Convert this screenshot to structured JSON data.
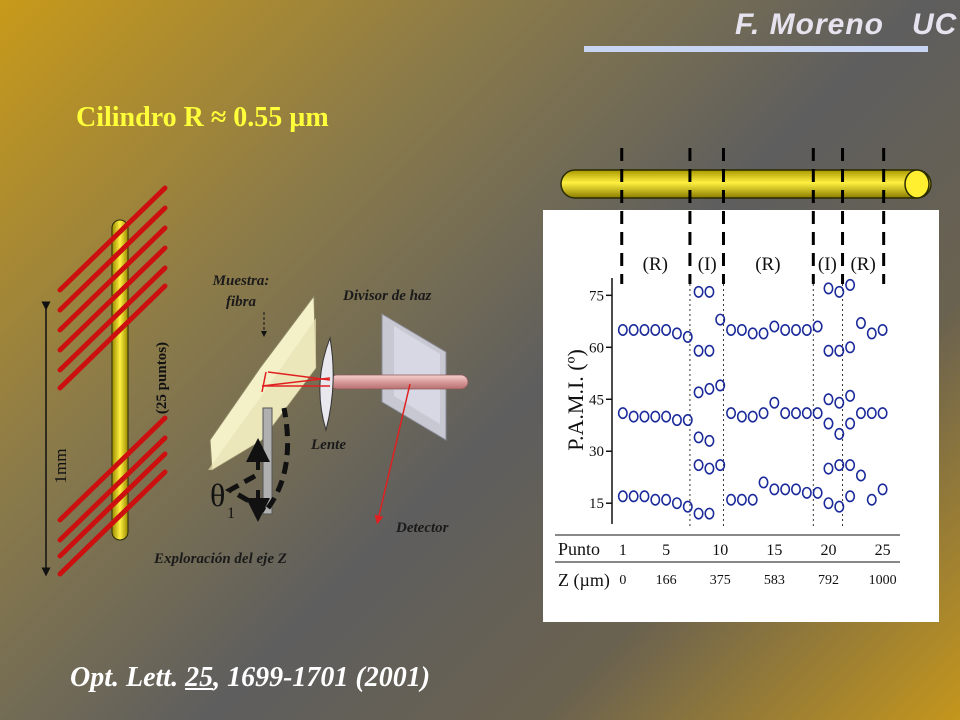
{
  "header": {
    "author": "F. Moreno",
    "institution": "UC"
  },
  "title": {
    "text": "Cilindro R ≈ 0.55 µm"
  },
  "citation": {
    "journal": "Opt. Lett.",
    "volume": "25",
    "rest": ", 1699-1701 (2001)"
  },
  "diagram": {
    "scale_label": "1mm",
    "points_label": "(25 puntos)",
    "muestra_line1": "Muestra:",
    "muestra_line2": "fibra",
    "divisor_label": "Divisor de haz",
    "lente_label": "Lente",
    "detector_label": "Detector",
    "exploration_label": "Exploración del eje Z",
    "theta_symbol": "θ",
    "theta_subscript": "1"
  },
  "colors": {
    "title": "#ffff3a",
    "fiber": "#f0e020",
    "laser": "#e01818",
    "marker": "#1a2a9a"
  },
  "chart_data": {
    "type": "scatter",
    "ylabel": "P.A.M.I. (º)",
    "yticks": [
      15,
      30,
      45,
      60,
      75
    ],
    "ylim": [
      9,
      80
    ],
    "xlim": [
      0,
      25.5
    ],
    "region_labels": [
      "(R)",
      "(I)",
      "(R)",
      "(I)",
      "(R)"
    ],
    "region_boundaries": [
      7.2,
      10.3,
      18.6,
      21.3
    ],
    "punto_label": "Punto",
    "punto_ticks": [
      1,
      5,
      10,
      15,
      20,
      25
    ],
    "z_label": "Z (µm)",
    "z_ticks": [
      "0",
      "166",
      "375",
      "583",
      "792",
      "1000"
    ],
    "series": [
      {
        "values": [
          [
            1,
            65
          ],
          [
            2,
            65
          ],
          [
            3,
            65
          ],
          [
            4,
            65
          ],
          [
            5,
            65
          ],
          [
            6,
            64
          ],
          [
            7,
            63
          ],
          [
            8,
            76
          ],
          [
            8,
            59
          ],
          [
            9,
            76
          ],
          [
            9,
            59
          ],
          [
            10,
            68
          ],
          [
            11,
            65
          ],
          [
            12,
            65
          ],
          [
            13,
            64
          ],
          [
            14,
            64
          ],
          [
            15,
            66
          ],
          [
            16,
            65
          ],
          [
            17,
            65
          ],
          [
            18,
            65
          ],
          [
            19,
            66
          ],
          [
            20,
            77
          ],
          [
            20,
            59
          ],
          [
            21,
            76
          ],
          [
            21,
            59
          ],
          [
            22,
            78
          ],
          [
            22,
            60
          ],
          [
            23,
            67
          ],
          [
            24,
            64
          ],
          [
            25,
            65
          ]
        ]
      },
      {
        "values": [
          [
            1,
            41
          ],
          [
            2,
            40
          ],
          [
            3,
            40
          ],
          [
            4,
            40
          ],
          [
            5,
            40
          ],
          [
            6,
            39
          ],
          [
            7,
            39
          ],
          [
            8,
            47
          ],
          [
            8,
            34
          ],
          [
            9,
            48
          ],
          [
            9,
            33
          ],
          [
            10,
            49
          ],
          [
            11,
            41
          ],
          [
            12,
            40
          ],
          [
            13,
            40
          ],
          [
            14,
            41
          ],
          [
            15,
            44
          ],
          [
            16,
            41
          ],
          [
            17,
            41
          ],
          [
            18,
            41
          ],
          [
            19,
            41
          ],
          [
            20,
            45
          ],
          [
            20,
            38
          ],
          [
            21,
            44
          ],
          [
            21,
            35
          ],
          [
            22,
            46
          ],
          [
            22,
            38
          ],
          [
            23,
            41
          ],
          [
            24,
            41
          ],
          [
            25,
            41
          ]
        ]
      },
      {
        "values": [
          [
            1,
            17
          ],
          [
            2,
            17
          ],
          [
            3,
            17
          ],
          [
            4,
            16
          ],
          [
            5,
            16
          ],
          [
            6,
            15
          ],
          [
            7,
            14
          ],
          [
            8,
            26
          ],
          [
            8,
            12
          ],
          [
            9,
            25
          ],
          [
            9,
            12
          ],
          [
            10,
            26
          ],
          [
            11,
            16
          ],
          [
            12,
            16
          ],
          [
            13,
            16
          ],
          [
            14,
            21
          ],
          [
            15,
            19
          ],
          [
            16,
            19
          ],
          [
            17,
            19
          ],
          [
            18,
            18
          ],
          [
            19,
            18
          ],
          [
            20,
            25
          ],
          [
            20,
            15
          ],
          [
            21,
            26
          ],
          [
            21,
            14
          ],
          [
            22,
            26
          ],
          [
            22,
            17
          ],
          [
            23,
            23
          ],
          [
            24,
            16
          ],
          [
            25,
            19
          ]
        ]
      }
    ]
  }
}
